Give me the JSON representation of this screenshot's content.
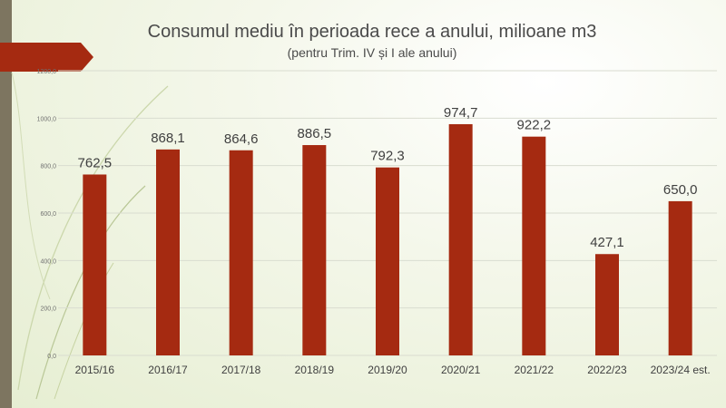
{
  "colors": {
    "bar": "#a52a11",
    "grid": "#d9dcd0",
    "text": "#404040",
    "sidebar": "#7d7560",
    "banner": "#a52a11",
    "accent_leaf": "#c9d7a6"
  },
  "chart_data": {
    "type": "bar",
    "title": "Consumul mediu în perioada rece a anului, milioane m3",
    "subtitle": "(pentru Trim. IV și I ale anului)",
    "categories": [
      "2015/16",
      "2016/17",
      "2017/18",
      "2018/19",
      "2019/20",
      "2020/21",
      "2021/22",
      "2022/23",
      "2023/24 est."
    ],
    "values": [
      762.5,
      868.1,
      864.6,
      886.5,
      792.3,
      974.7,
      922.2,
      427.1,
      650.0
    ],
    "value_labels": [
      "762,5",
      "868,1",
      "864,6",
      "886,5",
      "792,3",
      "974,7",
      "922,2",
      "427,1",
      "650,0"
    ],
    "y_ticks": [
      "0,0",
      "200,0",
      "400,0",
      "600,0",
      "800,0",
      "1000,0",
      "1200,0"
    ],
    "ylim": [
      0,
      1200
    ],
    "grid": true,
    "legend": "none"
  }
}
